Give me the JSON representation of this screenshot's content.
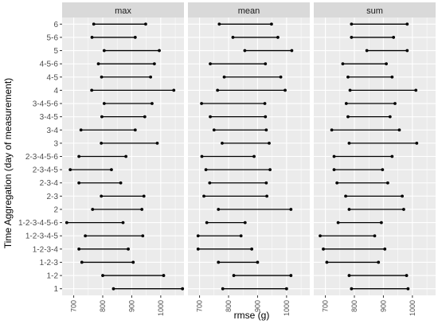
{
  "chart_data": {
    "type": "dumbbell",
    "xlabel": "rmse (g)",
    "ylabel": "Time Aggregation (day of measurement)",
    "xlim": [
      660,
      1080
    ],
    "xticks": [
      700,
      800,
      900,
      1000
    ],
    "categories": [
      "1",
      "1-2",
      "1-2-3",
      "1-2-3-4",
      "1-2-3-4-5",
      "1-2-3-4-5-6",
      "2",
      "2-3",
      "2-3-4",
      "2-3-4-5",
      "2-3-4-5-6",
      "3",
      "3-4",
      "3-4-5",
      "3-4-5-6",
      "4",
      "4-5",
      "4-5-6",
      "5",
      "5-6",
      "6"
    ],
    "facets": [
      {
        "name": "max",
        "min": [
          837,
          800,
          728,
          718,
          740,
          676,
          765,
          795,
          718,
          688,
          718,
          795,
          725,
          797,
          805,
          762,
          796,
          785,
          805,
          763,
          769
        ],
        "max": [
          1075,
          1010,
          905,
          888,
          938,
          870,
          935,
          942,
          862,
          830,
          880,
          988,
          912,
          945,
          970,
          1045,
          965,
          978,
          995,
          912,
          948
        ]
      },
      {
        "name": "mean",
        "min": [
          780,
          818,
          765,
          695,
          695,
          725,
          765,
          715,
          735,
          722,
          708,
          778,
          750,
          737,
          707,
          762,
          785,
          737,
          856,
          815,
          768
        ],
        "max": [
          1000,
          1015,
          900,
          880,
          843,
          857,
          1015,
          932,
          930,
          943,
          888,
          940,
          930,
          927,
          925,
          995,
          980,
          927,
          1018,
          970,
          948
        ]
      },
      {
        "name": "sum",
        "min": [
          790,
          782,
          705,
          693,
          682,
          744,
          782,
          770,
          740,
          730,
          730,
          782,
          722,
          778,
          772,
          785,
          778,
          760,
          843,
          790,
          790
        ],
        "max": [
          985,
          980,
          883,
          905,
          870,
          893,
          970,
          965,
          915,
          897,
          930,
          1015,
          955,
          923,
          940,
          1012,
          930,
          910,
          982,
          935,
          982
        ]
      }
    ]
  }
}
